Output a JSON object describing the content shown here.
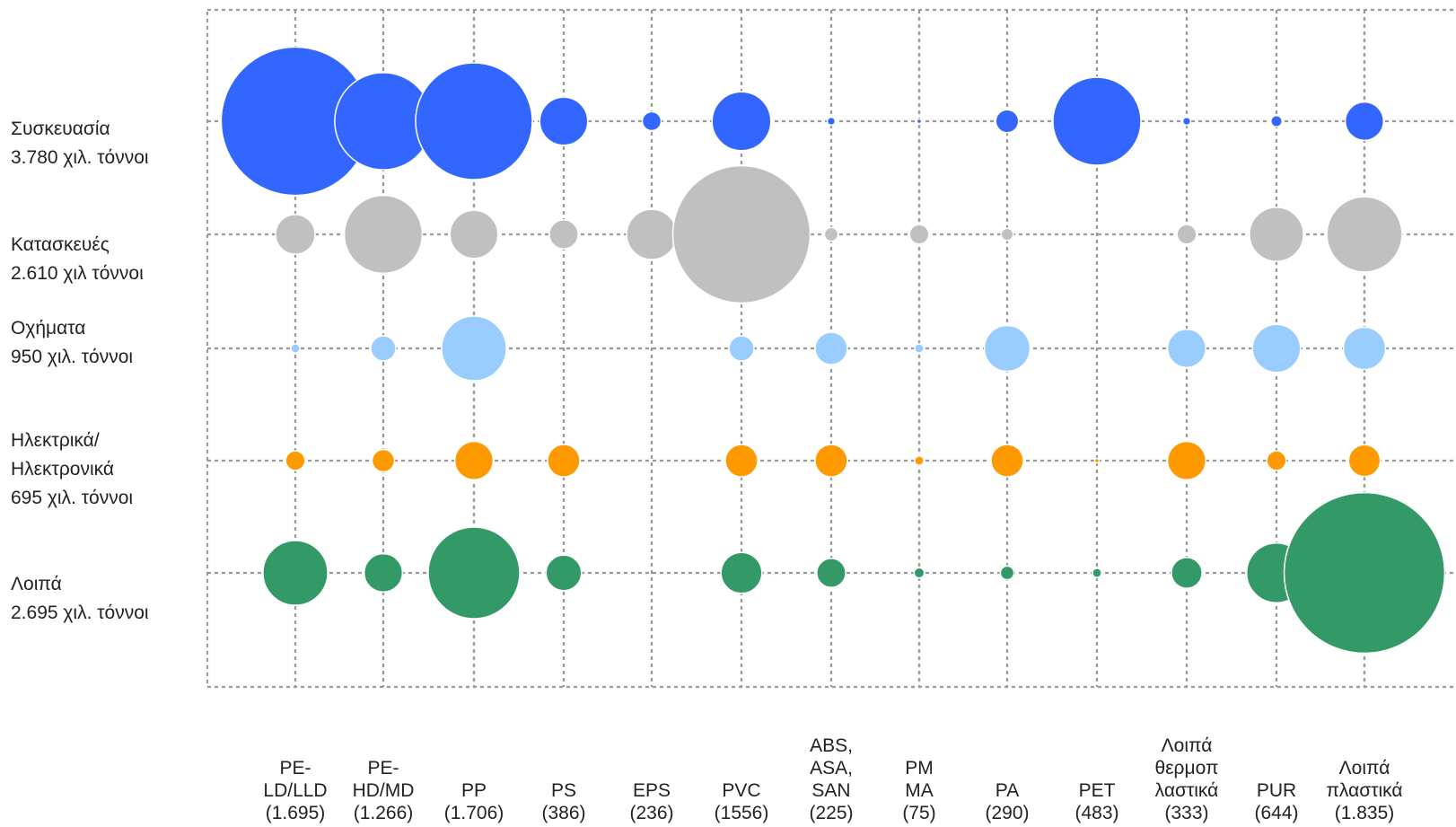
{
  "chart_data": {
    "type": "bubble",
    "title": "",
    "xlabel": "",
    "ylabel": "",
    "grid": true,
    "size_encoding": "thousand tonnes",
    "categories": [
      {
        "key": "PE-LD/LLD",
        "label": "PE-\nLD/LLD\n(1.695)",
        "total": 1695
      },
      {
        "key": "PE-HD/MD",
        "label": "PE-\nHD/MD\n(1.266)",
        "total": 1266
      },
      {
        "key": "PP",
        "label": "PP\n(1.706)",
        "total": 1706
      },
      {
        "key": "PS",
        "label": "PS\n(386)",
        "total": 386
      },
      {
        "key": "EPS",
        "label": "EPS\n(236)",
        "total": 236
      },
      {
        "key": "PVC",
        "label": "PVC\n(1556)",
        "total": 1556
      },
      {
        "key": "ABS, ASA, SAN",
        "label": "ABS,\nASA,\nSAN\n(225)",
        "total": 225
      },
      {
        "key": "PMMA",
        "label": "PM\nMA\n(75)",
        "total": 75
      },
      {
        "key": "PA",
        "label": "PA\n(290)",
        "total": 290
      },
      {
        "key": "PET",
        "label": "PET\n(483)",
        "total": 483
      },
      {
        "key": "Λοιπά θερμοπλαστικά",
        "label": "Λοιπά\nθερμοπ\nλαστικά\n(333)",
        "total": 333
      },
      {
        "key": "PUR",
        "label": "PUR\n(644)",
        "total": 644
      },
      {
        "key": "Λοιπά πλαστικά",
        "label": "Λοιπά\nπλαστικά\n(1.835)",
        "total": 1835
      }
    ],
    "series": [
      {
        "label": "Συσκευασία\n3.780 χιλ. τόννοι",
        "total": 3780,
        "color": "#3366ff",
        "values": [
          1050,
          450,
          650,
          110,
          17,
          165,
          3,
          1,
          25,
          370,
          3,
          6,
          70
        ]
      },
      {
        "label": "Κατασκευές\n2.610 χιλ τόννοι",
        "total": 2610,
        "color": "#c0c0c0",
        "values": [
          75,
          290,
          110,
          40,
          120,
          900,
          9,
          18,
          7,
          0,
          18,
          140,
          270
        ]
      },
      {
        "label": "Οχήματα\n950 χιλ. τόννοι",
        "total": 950,
        "color": "#99ccff",
        "values": [
          4,
          30,
          200,
          0,
          0,
          30,
          50,
          4,
          100,
          0,
          70,
          110,
          85
        ]
      },
      {
        "label": "Ηλεκτρικά/\nΗλεκτρονικά\n695 χιλ. τόννοι",
        "total": 695,
        "color": "#ff9900",
        "values": [
          18,
          24,
          70,
          50,
          0,
          50,
          50,
          4,
          50,
          1,
          70,
          18,
          48
        ]
      },
      {
        "label": "Λοιπά\n2.695 χιλ. τόννοι",
        "total": 2695,
        "color": "#339966",
        "values": [
          200,
          70,
          400,
          60,
          0,
          80,
          40,
          5,
          9,
          4,
          45,
          170,
          1230
        ]
      }
    ]
  }
}
